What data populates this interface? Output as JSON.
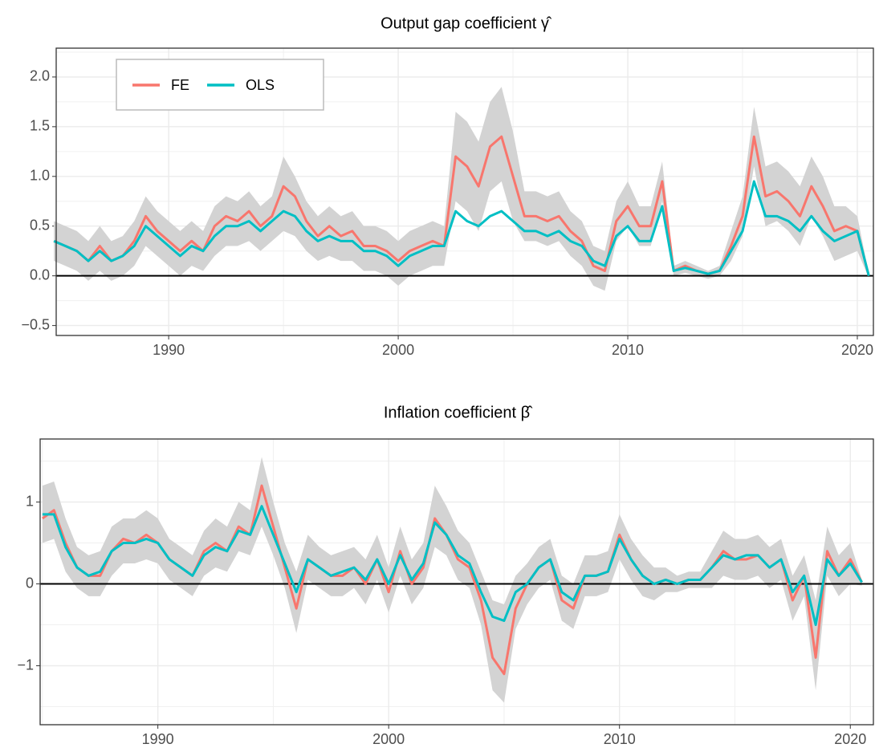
{
  "chart_data": [
    {
      "type": "line",
      "title": "Output gap coefficient γ̂",
      "x": [
        1985,
        1985.5,
        1986,
        1986.5,
        1987,
        1987.5,
        1988,
        1988.5,
        1989,
        1989.5,
        1990,
        1990.5,
        1991,
        1991.5,
        1992,
        1992.5,
        1993,
        1993.5,
        1994,
        1994.5,
        1995,
        1995.5,
        1996,
        1996.5,
        1997,
        1997.5,
        1998,
        1998.5,
        1999,
        1999.5,
        2000,
        2000.5,
        2001,
        2001.5,
        2002,
        2002.5,
        2003,
        2003.5,
        2004,
        2004.5,
        2005,
        2005.5,
        2006,
        2006.5,
        2007,
        2007.5,
        2008,
        2008.5,
        2009,
        2009.5,
        2010,
        2010.5,
        2011,
        2011.5,
        2012,
        2012.5,
        2013,
        2013.5,
        2014,
        2014.5,
        2015,
        2015.5,
        2016,
        2016.5,
        2017,
        2017.5,
        2018,
        2018.5,
        2019,
        2019.5,
        2020,
        2020.5
      ],
      "band": {
        "color": "#d3d3d3",
        "upper": [
          0.55,
          0.5,
          0.45,
          0.35,
          0.5,
          0.35,
          0.4,
          0.55,
          0.8,
          0.65,
          0.55,
          0.45,
          0.55,
          0.45,
          0.7,
          0.8,
          0.75,
          0.85,
          0.7,
          0.8,
          1.2,
          1.0,
          0.75,
          0.6,
          0.7,
          0.6,
          0.65,
          0.5,
          0.5,
          0.45,
          0.35,
          0.45,
          0.5,
          0.55,
          0.5,
          1.65,
          1.55,
          1.35,
          1.75,
          1.9,
          1.45,
          0.85,
          0.85,
          0.8,
          0.85,
          0.65,
          0.55,
          0.3,
          0.25,
          0.75,
          0.95,
          0.7,
          0.7,
          1.15,
          0.1,
          0.15,
          0.1,
          0.05,
          0.1,
          0.45,
          0.8,
          1.7,
          1.1,
          1.15,
          1.05,
          0.9,
          1.2,
          1.0,
          0.7,
          0.7,
          0.6,
          0.02
        ],
        "lower": [
          0.15,
          0.1,
          0.05,
          -0.05,
          0.05,
          -0.05,
          0.0,
          0.1,
          0.3,
          0.2,
          0.1,
          0.0,
          0.1,
          0.05,
          0.2,
          0.3,
          0.3,
          0.35,
          0.25,
          0.35,
          0.45,
          0.4,
          0.25,
          0.15,
          0.2,
          0.15,
          0.15,
          0.05,
          0.05,
          0.0,
          -0.1,
          0.0,
          0.05,
          0.1,
          0.1,
          0.75,
          0.65,
          0.45,
          0.85,
          0.95,
          0.55,
          0.35,
          0.35,
          0.3,
          0.35,
          0.2,
          0.1,
          -0.1,
          -0.15,
          0.35,
          0.5,
          0.3,
          0.3,
          0.75,
          0.0,
          0.03,
          0.0,
          -0.03,
          0.0,
          0.15,
          0.4,
          1.1,
          0.5,
          0.55,
          0.45,
          0.3,
          0.6,
          0.4,
          0.15,
          0.2,
          0.25,
          -0.02
        ]
      },
      "series": [
        {
          "name": "FE",
          "color": "#F8766D",
          "values": [
            0.35,
            0.3,
            0.25,
            0.15,
            0.3,
            0.15,
            0.2,
            0.35,
            0.6,
            0.45,
            0.35,
            0.25,
            0.35,
            0.25,
            0.5,
            0.6,
            0.55,
            0.65,
            0.5,
            0.6,
            0.9,
            0.8,
            0.55,
            0.4,
            0.5,
            0.4,
            0.45,
            0.3,
            0.3,
            0.25,
            0.15,
            0.25,
            0.3,
            0.35,
            0.3,
            1.2,
            1.1,
            0.9,
            1.3,
            1.4,
            1.0,
            0.6,
            0.6,
            0.55,
            0.6,
            0.45,
            0.35,
            0.1,
            0.05,
            0.55,
            0.7,
            0.5,
            0.5,
            0.95,
            0.05,
            0.1,
            0.05,
            0.02,
            0.05,
            0.3,
            0.6,
            1.4,
            0.8,
            0.85,
            0.75,
            0.6,
            0.9,
            0.7,
            0.45,
            0.5,
            0.45,
            0.0
          ]
        },
        {
          "name": "OLS",
          "color": "#00BFC4",
          "values": [
            0.35,
            0.3,
            0.25,
            0.15,
            0.25,
            0.15,
            0.2,
            0.3,
            0.5,
            0.4,
            0.3,
            0.2,
            0.3,
            0.25,
            0.4,
            0.5,
            0.5,
            0.55,
            0.45,
            0.55,
            0.65,
            0.6,
            0.45,
            0.35,
            0.4,
            0.35,
            0.35,
            0.25,
            0.25,
            0.2,
            0.1,
            0.2,
            0.25,
            0.3,
            0.3,
            0.65,
            0.55,
            0.5,
            0.6,
            0.65,
            0.55,
            0.45,
            0.45,
            0.4,
            0.45,
            0.35,
            0.3,
            0.15,
            0.1,
            0.4,
            0.5,
            0.35,
            0.35,
            0.7,
            0.05,
            0.08,
            0.05,
            0.02,
            0.05,
            0.25,
            0.45,
            0.95,
            0.6,
            0.6,
            0.55,
            0.45,
            0.6,
            0.45,
            0.35,
            0.4,
            0.45,
            0.0
          ]
        }
      ],
      "xlim": [
        1985.1,
        2020.7
      ],
      "xticks": [
        1990,
        2000,
        2010,
        2020
      ],
      "ylim": [
        -0.6,
        2.29
      ],
      "yticks": [
        {
          "value": -0.5,
          "label": "−0.5"
        },
        {
          "value": 0,
          "label": "0.0"
        },
        0.5,
        {
          "value": 1,
          "label": "1.0"
        },
        1.5,
        {
          "value": 2,
          "label": "2.0"
        }
      ],
      "hline": 0,
      "grid": true,
      "legend": "top-left"
    },
    {
      "type": "line",
      "title": "Inflation coefficient β̂",
      "x": [
        1985,
        1985.5,
        1986,
        1986.5,
        1987,
        1987.5,
        1988,
        1988.5,
        1989,
        1989.5,
        1990,
        1990.5,
        1991,
        1991.5,
        1992,
        1992.5,
        1993,
        1993.5,
        1994,
        1994.5,
        1995,
        1995.5,
        1996,
        1996.5,
        1997,
        1997.5,
        1998,
        1998.5,
        1999,
        1999.5,
        2000,
        2000.5,
        2001,
        2001.5,
        2002,
        2002.5,
        2003,
        2003.5,
        2004,
        2004.5,
        2005,
        2005.5,
        2006,
        2006.5,
        2007,
        2007.5,
        2008,
        2008.5,
        2009,
        2009.5,
        2010,
        2010.5,
        2011,
        2011.5,
        2012,
        2012.5,
        2013,
        2013.5,
        2014,
        2014.5,
        2015,
        2015.5,
        2016,
        2016.5,
        2017,
        2017.5,
        2018,
        2018.5,
        2019,
        2019.5,
        2020,
        2020.5
      ],
      "band": {
        "color": "#d3d3d3",
        "upper": [
          1.2,
          1.25,
          0.8,
          0.45,
          0.35,
          0.4,
          0.7,
          0.8,
          0.8,
          0.9,
          0.8,
          0.55,
          0.45,
          0.35,
          0.65,
          0.8,
          0.7,
          1.0,
          0.9,
          1.55,
          1.0,
          0.5,
          0.15,
          0.6,
          0.45,
          0.35,
          0.4,
          0.45,
          0.3,
          0.6,
          0.2,
          0.7,
          0.3,
          0.5,
          1.2,
          0.95,
          0.65,
          0.5,
          0.15,
          -0.2,
          -0.25,
          0.1,
          0.25,
          0.45,
          0.55,
          0.1,
          0.0,
          0.35,
          0.35,
          0.4,
          0.85,
          0.55,
          0.35,
          0.2,
          0.2,
          0.1,
          0.15,
          0.15,
          0.4,
          0.65,
          0.55,
          0.55,
          0.6,
          0.45,
          0.55,
          0.1,
          0.35,
          -0.2,
          0.7,
          0.35,
          0.5,
          0.05
        ],
        "lower": [
          0.5,
          0.55,
          0.15,
          -0.05,
          -0.15,
          -0.15,
          0.1,
          0.25,
          0.25,
          0.3,
          0.25,
          0.05,
          -0.05,
          -0.15,
          0.1,
          0.2,
          0.15,
          0.4,
          0.35,
          0.7,
          0.35,
          -0.05,
          -0.6,
          0.05,
          -0.05,
          -0.15,
          -0.15,
          -0.05,
          -0.25,
          0.05,
          -0.35,
          0.1,
          -0.25,
          -0.05,
          0.45,
          0.35,
          0.05,
          -0.05,
          -0.5,
          -1.3,
          -1.45,
          -0.55,
          -0.25,
          -0.05,
          0.05,
          -0.45,
          -0.55,
          -0.15,
          -0.15,
          -0.1,
          0.3,
          0.05,
          -0.15,
          -0.2,
          -0.1,
          -0.1,
          -0.05,
          -0.05,
          -0.05,
          0.1,
          0.05,
          0.05,
          0.1,
          -0.05,
          0.05,
          -0.45,
          -0.15,
          -1.3,
          0.1,
          -0.15,
          0.0,
          -0.02
        ]
      },
      "series": [
        {
          "color": "#F8766D",
          "values": [
            0.8,
            0.9,
            0.5,
            0.2,
            0.1,
            0.1,
            0.4,
            0.55,
            0.5,
            0.6,
            0.5,
            0.3,
            0.2,
            0.1,
            0.4,
            0.5,
            0.4,
            0.7,
            0.6,
            1.2,
            0.7,
            0.2,
            -0.3,
            0.3,
            0.2,
            0.1,
            0.1,
            0.2,
            0.0,
            0.3,
            -0.1,
            0.4,
            0.0,
            0.2,
            0.8,
            0.6,
            0.3,
            0.2,
            -0.2,
            -0.9,
            -1.1,
            -0.3,
            0.0,
            0.2,
            0.3,
            -0.2,
            -0.3,
            0.1,
            0.1,
            0.15,
            0.6,
            0.3,
            0.1,
            0.0,
            0.05,
            0.0,
            0.05,
            0.05,
            0.2,
            0.4,
            0.3,
            0.3,
            0.35,
            0.2,
            0.3,
            -0.2,
            0.1,
            -0.9,
            0.4,
            0.1,
            0.3,
            0.02
          ]
        },
        {
          "color": "#00BFC4",
          "values": [
            0.85,
            0.85,
            0.45,
            0.2,
            0.1,
            0.15,
            0.4,
            0.5,
            0.5,
            0.55,
            0.5,
            0.3,
            0.2,
            0.1,
            0.35,
            0.45,
            0.4,
            0.65,
            0.6,
            0.95,
            0.6,
            0.25,
            -0.1,
            0.3,
            0.2,
            0.1,
            0.15,
            0.2,
            0.05,
            0.3,
            0.0,
            0.35,
            0.05,
            0.25,
            0.75,
            0.6,
            0.35,
            0.25,
            -0.1,
            -0.4,
            -0.45,
            -0.1,
            0.0,
            0.2,
            0.3,
            -0.1,
            -0.2,
            0.1,
            0.1,
            0.15,
            0.55,
            0.3,
            0.1,
            0.0,
            0.05,
            0.0,
            0.05,
            0.05,
            0.2,
            0.35,
            0.3,
            0.35,
            0.35,
            0.2,
            0.3,
            -0.1,
            0.1,
            -0.5,
            0.3,
            0.1,
            0.25,
            0.02
          ]
        }
      ],
      "xlim": [
        1984.9,
        2021.0
      ],
      "xticks": [
        1990,
        2000,
        2010,
        2020
      ],
      "ylim": [
        -1.72,
        1.77
      ],
      "yticks": [
        {
          "value": -1,
          "label": "−1"
        },
        0,
        1
      ],
      "hline": 0,
      "grid": true
    }
  ]
}
